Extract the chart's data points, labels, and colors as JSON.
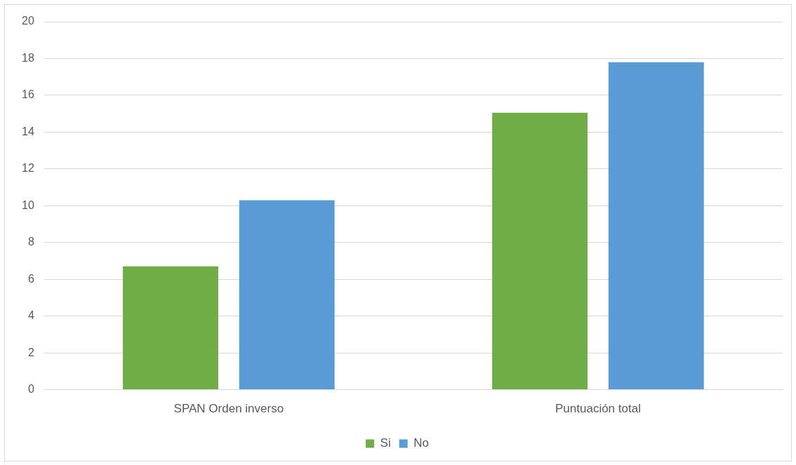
{
  "chart_data": {
    "type": "bar",
    "categories": [
      "SPAN Orden inverso",
      "Puntuación total"
    ],
    "series": [
      {
        "name": "Si",
        "color": "#70ad47",
        "values": [
          6.7,
          15.05
        ]
      },
      {
        "name": "No",
        "color": "#5b9bd5",
        "values": [
          10.3,
          17.8
        ]
      }
    ],
    "ylim": [
      0,
      20
    ],
    "yticks": [
      0,
      2,
      4,
      6,
      8,
      10,
      12,
      14,
      16,
      18,
      20
    ],
    "grid": "y",
    "legend": "bottom"
  }
}
